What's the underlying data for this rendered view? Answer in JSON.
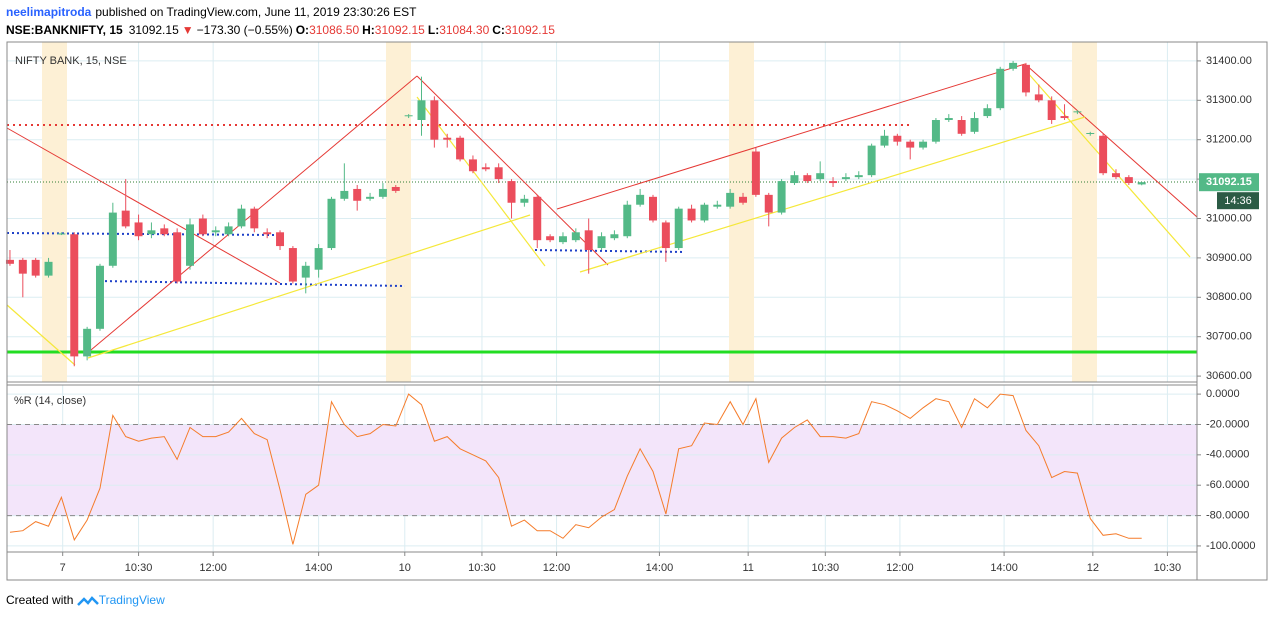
{
  "header": {
    "user": "neelimapitroda",
    "published": "published on TradingView.com, June 11, 2019 23:30:26 EST",
    "symbol": "NSE:BANKNIFTY, 15",
    "price": "31092.15",
    "arrow": "▼",
    "change": "−173.30 (−0.55%)",
    "ohlc": [
      {
        "label": "O:",
        "value": "31086.50"
      },
      {
        "label": "H:",
        "value": "31092.15"
      },
      {
        "label": "L:",
        "value": "31084.30"
      },
      {
        "label": "C:",
        "value": "31092.15"
      }
    ]
  },
  "footer": {
    "created": "Created with",
    "brand": "TradingView"
  },
  "chart_data": [
    {
      "type": "candlestick",
      "title": "NIFTY BANK, 15, NSE",
      "up_color": "#53b987",
      "down_color": "#eb4d5c",
      "x": [
        0,
        1,
        2,
        3,
        4,
        5,
        6,
        7,
        8,
        9,
        10,
        11,
        12,
        13,
        14,
        15,
        16,
        17,
        18,
        19,
        20,
        21,
        22,
        23,
        24,
        25,
        26,
        27,
        28,
        29,
        30,
        31,
        32,
        33,
        34,
        35,
        36,
        37,
        38,
        39,
        40,
        41,
        42,
        43,
        44,
        45,
        46,
        47,
        48,
        49,
        50,
        51,
        52,
        53,
        54,
        55,
        56,
        57,
        58,
        59,
        60,
        61,
        62,
        63,
        64,
        65,
        66,
        67,
        68,
        69,
        70,
        71,
        72,
        73,
        74,
        75,
        76,
        77,
        78,
        79,
        80,
        81,
        82,
        83,
        84,
        85,
        86,
        87,
        88
      ],
      "open": [
        30895,
        30895,
        30895,
        30855,
        30960,
        30960,
        30650,
        30720,
        30880,
        31020,
        30990,
        30960,
        30975,
        30965,
        30880,
        31000,
        30965,
        30960,
        30980,
        31025,
        30965,
        30965,
        30925,
        30850,
        30870,
        30925,
        31050,
        31075,
        31050,
        31055,
        31080,
        31260,
        31250,
        31300,
        31205,
        31205,
        31150,
        31130,
        31130,
        31095,
        31040,
        31055,
        30955,
        30940,
        30945,
        30970,
        30925,
        30950,
        30955,
        31035,
        31055,
        30990,
        30925,
        31025,
        30995,
        31030,
        31030,
        31055,
        31170,
        31060,
        31015,
        31090,
        31110,
        31100,
        31095,
        31100,
        31105,
        31110,
        31185,
        31210,
        31195,
        31180,
        31195,
        31250,
        31250,
        31220,
        31260,
        31280,
        31380,
        31390,
        31315,
        31300,
        31260,
        31270,
        31215,
        31210,
        31115,
        31105,
        31086.5
      ],
      "close": [
        30885,
        30860,
        30855,
        30890,
        30962,
        30650,
        30720,
        30880,
        31015,
        30980,
        30955,
        30970,
        30960,
        30840,
        30985,
        30960,
        30970,
        30980,
        31025,
        30975,
        30960,
        30930,
        30840,
        30880,
        30925,
        31050,
        31070,
        31045,
        31055,
        31075,
        31070,
        31262,
        31300,
        31200,
        31200,
        31150,
        31120,
        31125,
        31100,
        31040,
        31050,
        30945,
        30945,
        30955,
        30965,
        30920,
        30955,
        30960,
        31035,
        31060,
        30995,
        30925,
        31025,
        30995,
        31035,
        31035,
        31065,
        31040,
        31060,
        31015,
        31095,
        31110,
        31095,
        31115,
        31090,
        31105,
        31110,
        31185,
        31210,
        31195,
        31180,
        31195,
        31250,
        31255,
        31215,
        31255,
        31280,
        31380,
        31395,
        31320,
        31300,
        31250,
        31255,
        31272,
        31217,
        31115,
        31105,
        31090,
        31092.15
      ],
      "high": [
        30920,
        30900,
        30900,
        30900,
        30965,
        30965,
        30725,
        30885,
        31040,
        31100,
        31010,
        30990,
        30985,
        30975,
        31000,
        31010,
        30980,
        30990,
        31035,
        31030,
        30975,
        30970,
        30930,
        30890,
        30935,
        31055,
        31140,
        31085,
        31065,
        31090,
        31085,
        31265,
        31360,
        31310,
        31215,
        31210,
        31160,
        31140,
        31140,
        31100,
        31060,
        31060,
        30960,
        30965,
        30975,
        31000,
        30965,
        30970,
        31045,
        31075,
        31060,
        30995,
        31030,
        31035,
        31040,
        31045,
        31075,
        31065,
        31180,
        31065,
        31100,
        31120,
        31115,
        31145,
        31105,
        31115,
        31120,
        31190,
        31225,
        31215,
        31200,
        31200,
        31255,
        31265,
        31260,
        31270,
        31290,
        31385,
        31400,
        31395,
        31340,
        31310,
        31290,
        31275,
        31220,
        31215,
        31125,
        31110,
        31092.15
      ],
      "low": [
        30880,
        30800,
        30850,
        30850,
        30958,
        30625,
        30640,
        30715,
        30875,
        30975,
        30945,
        30950,
        30955,
        30835,
        30870,
        30955,
        30955,
        30955,
        30975,
        30965,
        30950,
        30920,
        30835,
        30810,
        30850,
        30920,
        31045,
        31020,
        31045,
        31050,
        31065,
        31255,
        31210,
        31180,
        31180,
        31145,
        31115,
        31120,
        31090,
        31000,
        31030,
        30925,
        30940,
        30935,
        30940,
        30860,
        30920,
        30945,
        30950,
        31030,
        30990,
        30890,
        30920,
        30990,
        30990,
        31025,
        31025,
        31035,
        31055,
        30980,
        31010,
        31085,
        31090,
        31095,
        31080,
        31095,
        31100,
        31105,
        31180,
        31185,
        31150,
        31175,
        31190,
        31245,
        31210,
        31215,
        31255,
        31275,
        31375,
        31310,
        31295,
        31240,
        31250,
        31265,
        31210,
        31110,
        31100,
        31085,
        31084.3
      ],
      "xlim": [
        -0.23,
        92.3
      ],
      "ylim": [
        30585,
        31448
      ],
      "yticks": [
        {
          "value": 30600,
          "label": "30600.00"
        },
        {
          "value": 30700,
          "label": "30700.00"
        },
        {
          "value": 30800,
          "label": "30800.00"
        },
        {
          "value": 30900,
          "label": "30900.00"
        },
        {
          "value": 31000,
          "label": "31000.00"
        },
        {
          "value": 31100,
          "label": "31100.00"
        },
        {
          "value": 31200,
          "label": "31200.00"
        },
        {
          "value": 31300,
          "label": "31300.00"
        },
        {
          "value": 31400,
          "label": "31400.00"
        }
      ],
      "xticks": [
        {
          "value": 4.1,
          "label": "7"
        },
        {
          "value": 10,
          "label": "10:30"
        },
        {
          "value": 15.8,
          "label": "12:00"
        },
        {
          "value": 24,
          "label": "14:00"
        },
        {
          "value": 30.7,
          "label": "10"
        },
        {
          "value": 36.7,
          "label": "10:30"
        },
        {
          "value": 42.5,
          "label": "12:00"
        },
        {
          "value": 50.5,
          "label": "14:00"
        },
        {
          "value": 57.4,
          "label": "11"
        },
        {
          "value": 63.4,
          "label": "10:30"
        },
        {
          "value": 69.2,
          "label": "12:00"
        },
        {
          "value": 77.3,
          "label": "14:00"
        },
        {
          "value": 84.2,
          "label": "12"
        },
        {
          "value": 90,
          "label": "10:30"
        }
      ],
      "grid": true,
      "last_label": "31092.15",
      "countdown": "14:36"
    },
    {
      "type": "line",
      "title": "%R (14, close)",
      "color": "#f57c2b",
      "x": [
        0,
        1,
        2,
        3,
        4,
        5,
        6,
        7,
        8,
        9,
        10,
        11,
        12,
        13,
        14,
        15,
        16,
        17,
        18,
        19,
        20,
        21,
        22,
        23,
        24,
        25,
        26,
        27,
        28,
        29,
        30,
        31,
        32,
        33,
        34,
        35,
        36,
        37,
        38,
        39,
        40,
        41,
        42,
        43,
        44,
        45,
        46,
        47,
        48,
        49,
        50,
        51,
        52,
        53,
        54,
        55,
        56,
        57,
        58,
        59,
        60,
        61,
        62,
        63,
        64,
        65,
        66,
        67,
        68,
        69,
        70,
        71,
        72,
        73,
        74,
        75,
        76,
        77,
        78,
        79,
        80,
        81,
        82,
        83,
        84,
        85,
        86,
        87,
        88
      ],
      "values": [
        -91,
        -90,
        -84,
        -87,
        -68,
        -96,
        -83,
        -62,
        -14,
        -28,
        -31,
        -29,
        -28,
        -43,
        -22,
        -28,
        -28,
        -25,
        -16,
        -26,
        -30,
        -63,
        -99,
        -66,
        -60,
        -5,
        -20,
        -28,
        -26,
        -20,
        -21,
        0,
        -7,
        -31,
        -28,
        -36,
        -40,
        -44,
        -55,
        -87,
        -83,
        -90,
        -90,
        -95,
        -86,
        -88,
        -81,
        -76,
        -54,
        -36,
        -51,
        -79,
        -36,
        -34,
        -19,
        -20,
        -5,
        -20,
        -3,
        -45,
        -29,
        -22,
        -17,
        -28,
        -28,
        -29,
        -26,
        -5,
        -7,
        -11,
        -16,
        -9,
        -3,
        -5,
        -22,
        -3,
        -9,
        0,
        -1,
        -24,
        -34,
        -55,
        -51,
        -52,
        -82,
        -93,
        -92,
        -95,
        -95
      ],
      "xlim": [
        -0.23,
        92.3
      ],
      "ylim": [
        -104,
        6
      ],
      "bands": [
        -20,
        -80
      ],
      "yticks": [
        {
          "value": 0,
          "label": "0.0000"
        },
        {
          "value": -20,
          "label": "-20.0000"
        },
        {
          "value": -40,
          "label": "-40.0000"
        },
        {
          "value": -60,
          "label": "-60.0000"
        },
        {
          "value": -80,
          "label": "-80.0000"
        },
        {
          "value": -100,
          "label": "-100.0000"
        }
      ],
      "grid": true
    }
  ]
}
